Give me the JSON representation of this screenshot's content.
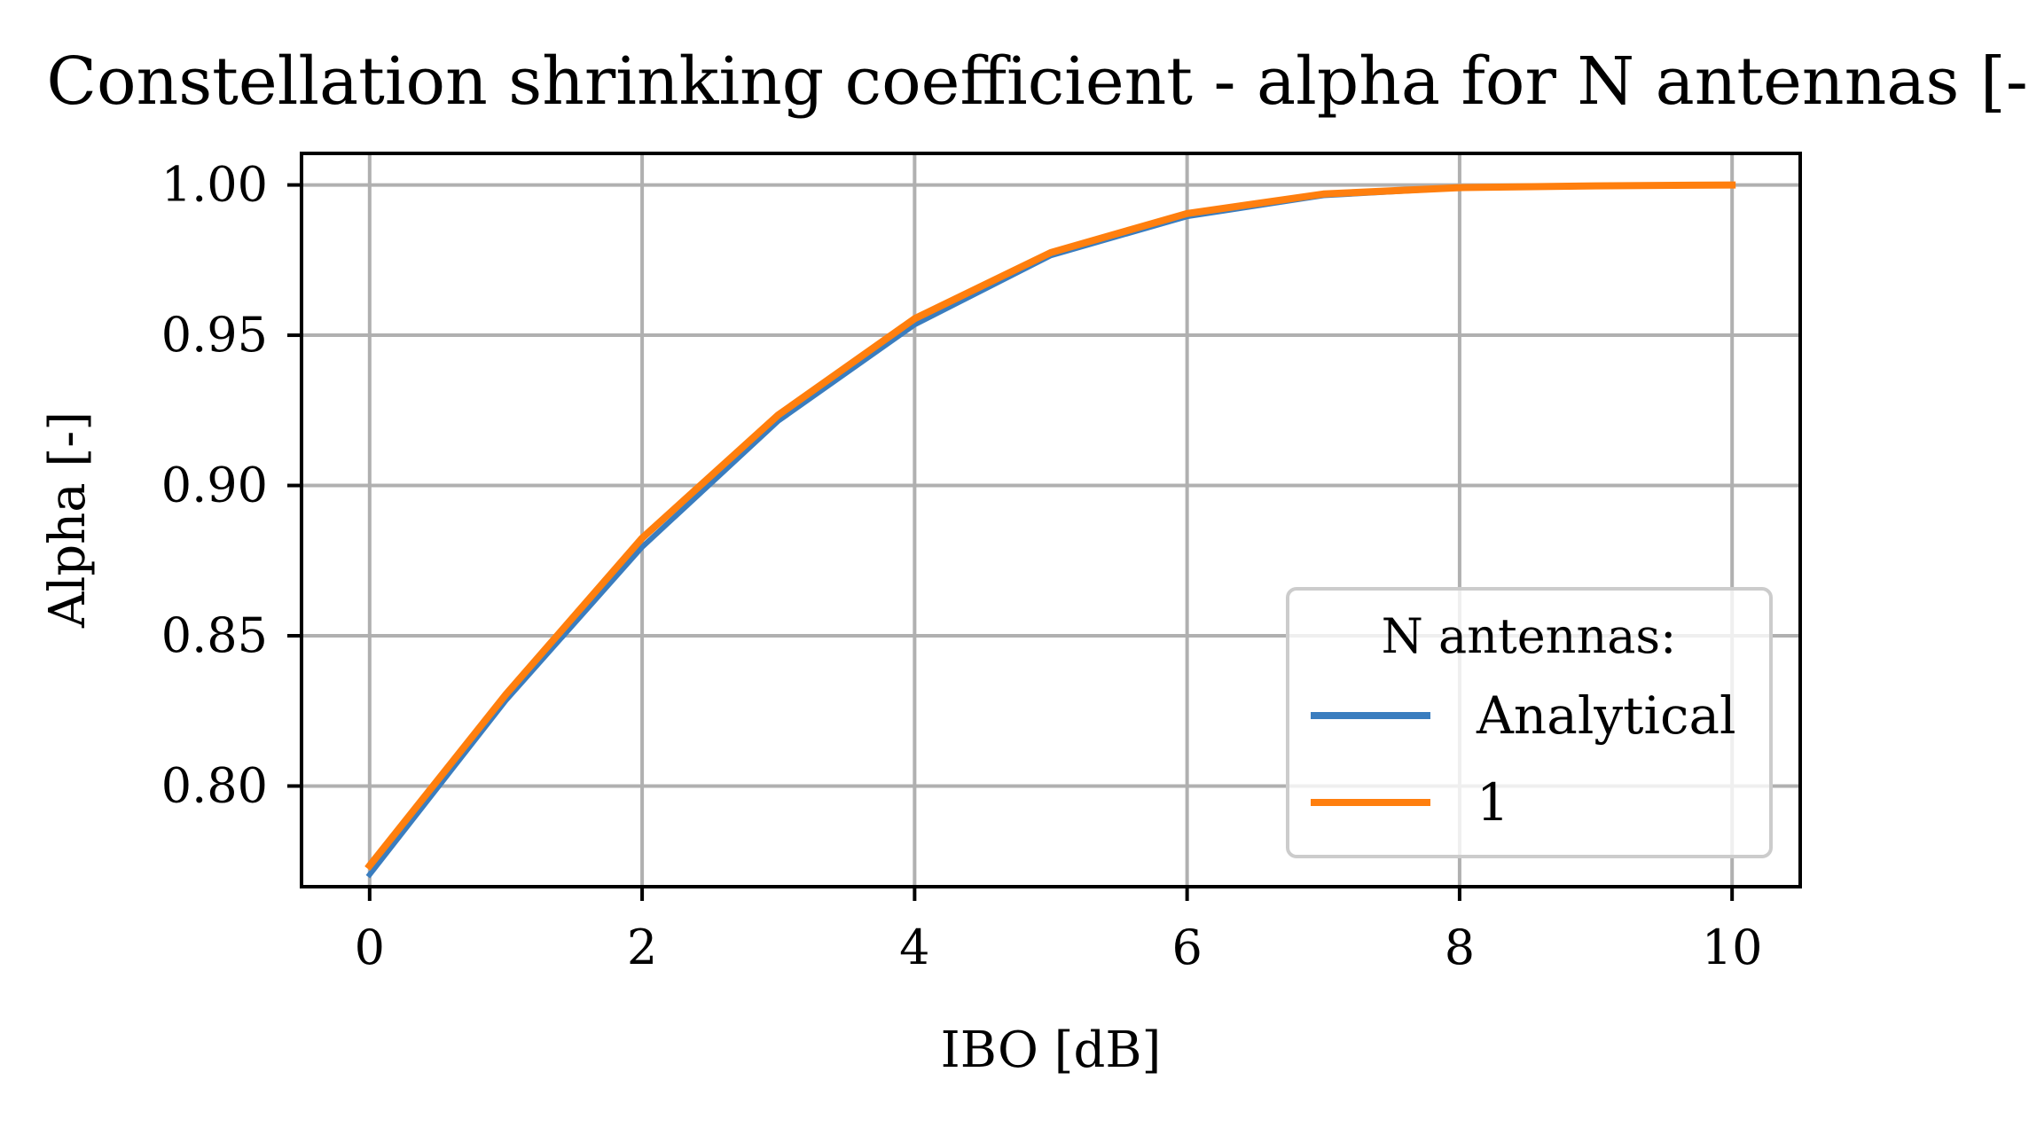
{
  "chart_data": {
    "type": "line",
    "title": "Constellation shrinking coefficient - alpha for N antennas [-]",
    "xlabel": "IBO [dB]",
    "ylabel": "Alpha [-]",
    "xlim": [
      -0.5,
      10.5
    ],
    "ylim": [
      0.7665,
      1.0105
    ],
    "x_ticks": [
      0,
      2,
      4,
      6,
      8,
      10
    ],
    "x_tick_labels": [
      "0",
      "2",
      "4",
      "6",
      "8",
      "10"
    ],
    "y_ticks": [
      0.8,
      0.85,
      0.9,
      0.95,
      1.0
    ],
    "y_tick_labels": [
      "0.80",
      "0.85",
      "0.90",
      "0.95",
      "1.00"
    ],
    "grid": true,
    "legend": {
      "title": "N antennas:",
      "placement": "lower right"
    },
    "x": [
      0,
      1,
      2,
      3,
      4,
      5,
      6,
      7,
      8,
      9,
      10
    ],
    "series": [
      {
        "name": "Analytical",
        "color": "#3a7dbf",
        "values": [
          0.7705,
          0.8285,
          0.8795,
          0.9215,
          0.9535,
          0.9765,
          0.9895,
          0.9965,
          0.999,
          0.9997,
          1.0
        ]
      },
      {
        "name": "1",
        "color": "#ff7f0e",
        "values": [
          0.7735,
          0.8305,
          0.8825,
          0.9235,
          0.9555,
          0.9775,
          0.9905,
          0.997,
          0.9991,
          0.9997,
          1.0
        ]
      }
    ]
  }
}
